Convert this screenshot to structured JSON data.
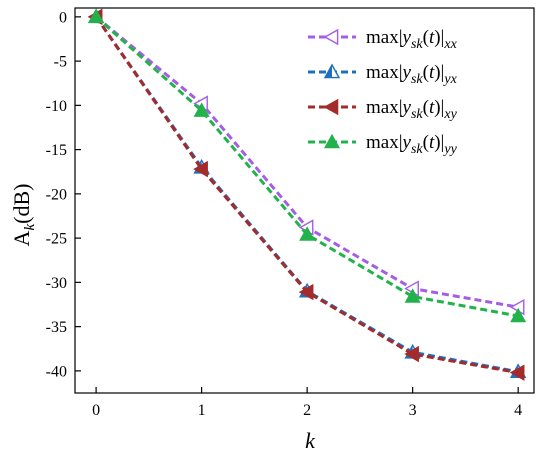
{
  "chart_data": {
    "type": "line",
    "title": "",
    "xlabel": "k",
    "ylabel_main": "A",
    "ylabel_sub": "k",
    "ylabel_unit": "(dB)",
    "xlim": [
      -0.2,
      4.15
    ],
    "ylim": [
      -42.5,
      1.0
    ],
    "x_ticks": [
      0,
      1,
      2,
      3,
      4
    ],
    "y_ticks": [
      0,
      -5,
      -10,
      -15,
      -20,
      -25,
      -30,
      -35,
      -40
    ],
    "grid": false,
    "legend_position": "top-right",
    "x": [
      0,
      1,
      2,
      3,
      4
    ],
    "series": [
      {
        "name_prefix": "max|y",
        "name_sub1": "sk",
        "name_mid": "(t)|",
        "name_sub2": "xx",
        "color": "#a45ee5",
        "marker": "triangle-left-open",
        "values": [
          0,
          -9.8,
          -23.8,
          -30.7,
          -32.8
        ]
      },
      {
        "name_prefix": "max|y",
        "name_sub1": "sk",
        "name_mid": "(t)|",
        "name_sub2": "yx",
        "color": "#1f6fbf",
        "marker": "triangle-up-half",
        "values": [
          0,
          -17.0,
          -31.0,
          -37.9,
          -40.1
        ]
      },
      {
        "name_prefix": "max|y",
        "name_sub1": "sk",
        "name_mid": "(t)|",
        "name_sub2": "xy",
        "color": "#a52a2a",
        "marker": "triangle-left-filled",
        "values": [
          0,
          -17.2,
          -31.1,
          -38.1,
          -40.2
        ]
      },
      {
        "name_prefix": "max|y",
        "name_sub1": "sk",
        "name_mid": "(t)|",
        "name_sub2": "yy",
        "color": "#22b24c",
        "marker": "triangle-up-filled",
        "values": [
          0,
          -10.6,
          -24.6,
          -31.6,
          -33.8
        ]
      }
    ]
  }
}
